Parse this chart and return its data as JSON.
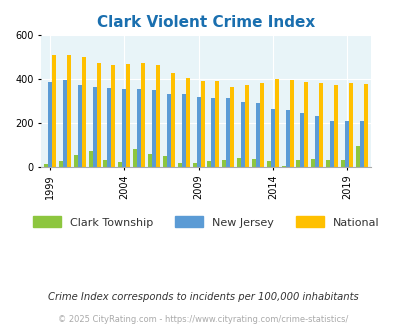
{
  "title": "Clark Violent Crime Index",
  "title_color": "#1a6faf",
  "years": [
    1999,
    2000,
    2001,
    2002,
    2003,
    2004,
    2005,
    2006,
    2007,
    2008,
    2009,
    2010,
    2011,
    2012,
    2013,
    2014,
    2015,
    2016,
    2017,
    2018,
    2019,
    2020
  ],
  "clark": [
    10,
    25,
    55,
    70,
    30,
    20,
    80,
    60,
    50,
    15,
    15,
    25,
    30,
    40,
    35,
    25,
    5,
    30,
    35,
    30,
    30,
    95
  ],
  "nj": [
    385,
    395,
    375,
    365,
    360,
    355,
    355,
    350,
    330,
    330,
    320,
    315,
    315,
    295,
    290,
    265,
    257,
    245,
    230,
    210,
    210,
    210
  ],
  "national": [
    510,
    510,
    500,
    475,
    465,
    470,
    475,
    465,
    430,
    405,
    390,
    390,
    365,
    375,
    380,
    400,
    398,
    385,
    380,
    375,
    380,
    378
  ],
  "clark_color": "#8dc63f",
  "nj_color": "#5b9bd5",
  "national_color": "#ffc000",
  "bg_color": "#e8f4f8",
  "ylim": [
    0,
    600
  ],
  "yticks": [
    0,
    200,
    400,
    600
  ],
  "footnote": "Crime Index corresponds to incidents per 100,000 inhabitants",
  "copyright": "© 2025 CityRating.com - https://www.cityrating.com/crime-statistics/",
  "legend_labels": [
    "Clark Township",
    "New Jersey",
    "National"
  ],
  "bar_width": 0.27
}
